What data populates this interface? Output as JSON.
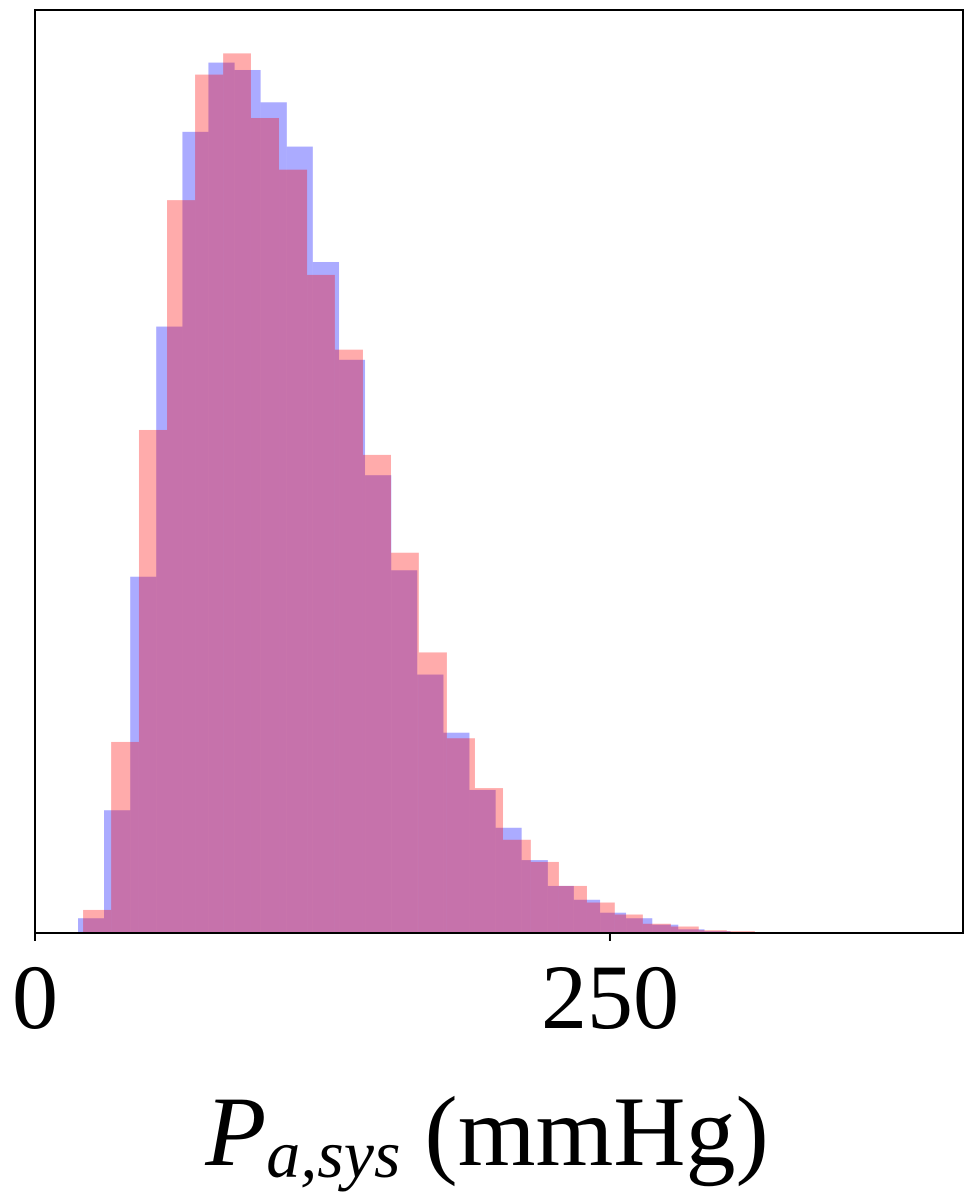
{
  "chart_data": {
    "type": "histogram",
    "xlabel": {
      "symbol": "P",
      "subscript": "a,sys",
      "unit": "(mmHg)"
    },
    "xlim": [
      0,
      403.5
    ],
    "xticks": [
      0,
      250
    ],
    "ylim": [
      0,
      1000
    ],
    "opacity": 0.33,
    "series": [
      {
        "color": "#0000ff",
        "bins": [
          18.7,
          30.0,
          41.4,
          52.7,
          64.1,
          75.4,
          86.8,
          98.1,
          109.5,
          120.8,
          132.2,
          143.5,
          154.9,
          166.2,
          177.6,
          188.9,
          200.3,
          211.6,
          223.0,
          234.3,
          245.7,
          257.0,
          268.4,
          279.7,
          291.1,
          302.4,
          313.8
        ],
        "values": [
          16,
          133,
          386,
          657,
          868,
          943,
          935,
          900,
          852,
          727,
          621,
          496,
          393,
          280,
          217,
          155,
          114,
          79,
          51,
          36,
          22,
          16,
          9,
          4,
          2,
          1
        ]
      },
      {
        "color": "#ff0000",
        "bins": [
          20.9,
          33.1,
          45.2,
          57.4,
          69.6,
          81.8,
          93.9,
          106.1,
          118.3,
          130.4,
          142.6,
          154.8,
          166.9,
          179.1,
          191.3,
          203.5,
          215.6,
          227.8,
          240.0,
          252.1,
          264.3,
          276.5,
          288.6,
          300.8,
          313.0,
          325.2
        ],
        "values": [
          25,
          207,
          545,
          794,
          930,
          953,
          883,
          827,
          713,
          632,
          518,
          412,
          304,
          211,
          157,
          101,
          77,
          51,
          33,
          20,
          10,
          7,
          3,
          2,
          1
        ]
      }
    ]
  }
}
